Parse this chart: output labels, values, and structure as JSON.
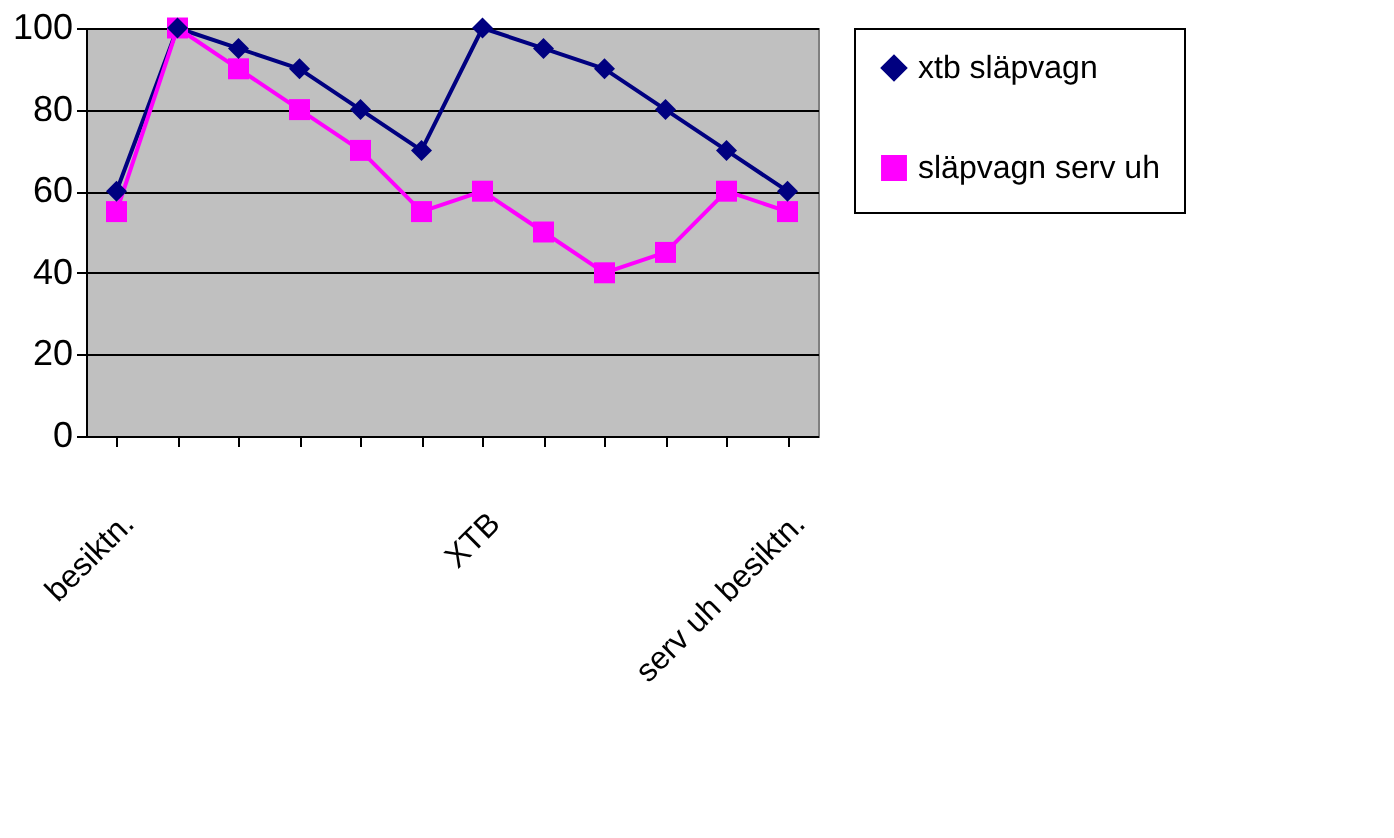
{
  "chart_data": {
    "type": "line",
    "categories": [
      "besiktn.",
      null,
      null,
      null,
      null,
      null,
      "XTB",
      null,
      null,
      null,
      null,
      "serv uh besiktn."
    ],
    "series": [
      {
        "name": "xtb släpvagn",
        "color": "#000080",
        "marker": "diamond",
        "values": [
          60,
          100,
          95,
          90,
          80,
          70,
          100,
          95,
          90,
          80,
          70,
          60
        ]
      },
      {
        "name": "släpvagn serv uh",
        "color": "#ff00ff",
        "marker": "square",
        "values": [
          55,
          100,
          90,
          80,
          70,
          55,
          60,
          50,
          40,
          45,
          60,
          55
        ]
      }
    ],
    "ylim": [
      0,
      100
    ],
    "yticks": [
      0,
      20,
      40,
      60,
      80,
      100
    ],
    "grid": "y",
    "legend": "right"
  }
}
